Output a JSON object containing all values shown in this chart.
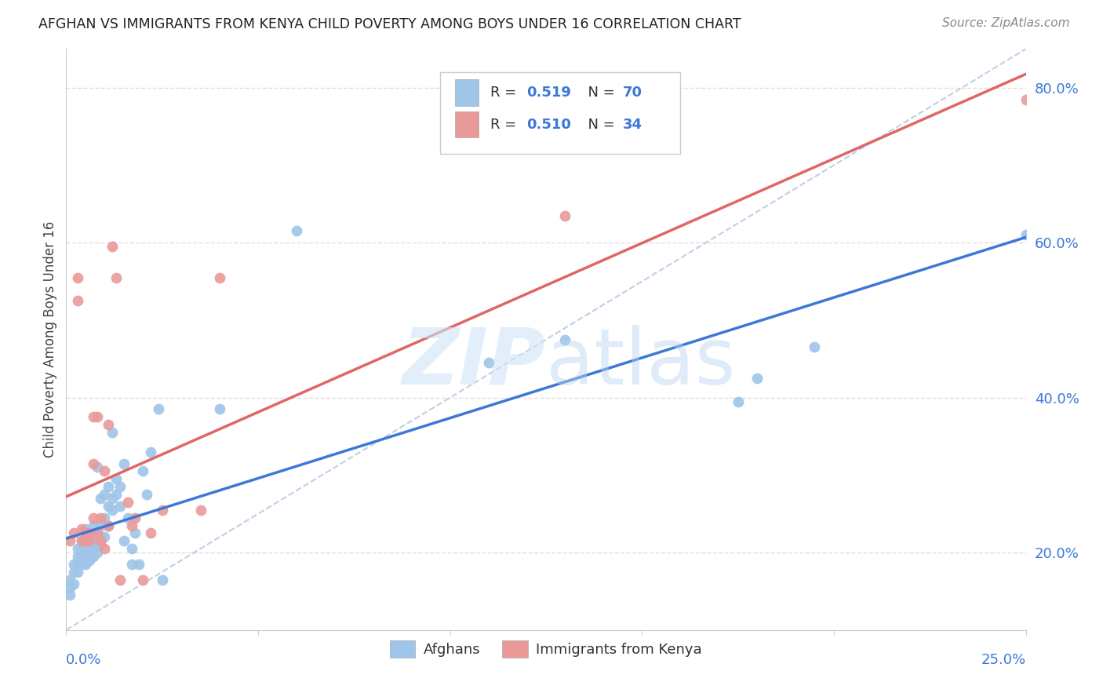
{
  "title": "AFGHAN VS IMMIGRANTS FROM KENYA CHILD POVERTY AMONG BOYS UNDER 16 CORRELATION CHART",
  "source": "Source: ZipAtlas.com",
  "ylabel": "Child Poverty Among Boys Under 16",
  "watermark": "ZIPatlas",
  "blue_color": "#9fc5e8",
  "pink_color": "#ea9999",
  "blue_line_color": "#3c78d8",
  "pink_line_color": "#e06666",
  "dashed_line_color": "#b0c4de",
  "title_color": "#222222",
  "source_color": "#888888",
  "axis_label_color": "#3c78d8",
  "legend_text_color": "#3c78d8",
  "background_color": "#ffffff",
  "grid_color": "#e0e0e0",
  "afghans_x": [
    0.001,
    0.001,
    0.001,
    0.002,
    0.002,
    0.002,
    0.003,
    0.003,
    0.003,
    0.003,
    0.004,
    0.004,
    0.004,
    0.004,
    0.005,
    0.005,
    0.005,
    0.005,
    0.005,
    0.005,
    0.006,
    0.006,
    0.006,
    0.006,
    0.007,
    0.007,
    0.007,
    0.007,
    0.007,
    0.008,
    0.008,
    0.008,
    0.008,
    0.009,
    0.009,
    0.009,
    0.009,
    0.01,
    0.01,
    0.01,
    0.011,
    0.011,
    0.011,
    0.012,
    0.012,
    0.012,
    0.013,
    0.013,
    0.014,
    0.014,
    0.015,
    0.015,
    0.016,
    0.017,
    0.017,
    0.018,
    0.019,
    0.02,
    0.021,
    0.022,
    0.024,
    0.025,
    0.04,
    0.06,
    0.11,
    0.13,
    0.175,
    0.18,
    0.195,
    0.25
  ],
  "afghans_y": [
    0.145,
    0.155,
    0.165,
    0.16,
    0.175,
    0.185,
    0.175,
    0.185,
    0.195,
    0.205,
    0.185,
    0.195,
    0.205,
    0.215,
    0.185,
    0.195,
    0.205,
    0.215,
    0.225,
    0.23,
    0.19,
    0.2,
    0.21,
    0.22,
    0.195,
    0.205,
    0.215,
    0.225,
    0.235,
    0.2,
    0.21,
    0.22,
    0.31,
    0.21,
    0.22,
    0.235,
    0.27,
    0.22,
    0.245,
    0.275,
    0.235,
    0.26,
    0.285,
    0.255,
    0.27,
    0.355,
    0.275,
    0.295,
    0.26,
    0.285,
    0.215,
    0.315,
    0.245,
    0.185,
    0.205,
    0.225,
    0.185,
    0.305,
    0.275,
    0.33,
    0.385,
    0.165,
    0.385,
    0.615,
    0.445,
    0.475,
    0.395,
    0.425,
    0.465,
    0.61
  ],
  "kenya_x": [
    0.001,
    0.002,
    0.003,
    0.003,
    0.004,
    0.004,
    0.005,
    0.005,
    0.006,
    0.006,
    0.007,
    0.007,
    0.007,
    0.008,
    0.008,
    0.009,
    0.009,
    0.01,
    0.01,
    0.011,
    0.011,
    0.012,
    0.013,
    0.014,
    0.016,
    0.017,
    0.018,
    0.02,
    0.022,
    0.025,
    0.035,
    0.04,
    0.13,
    0.25
  ],
  "kenya_y": [
    0.215,
    0.225,
    0.555,
    0.525,
    0.23,
    0.215,
    0.215,
    0.225,
    0.215,
    0.225,
    0.315,
    0.375,
    0.245,
    0.225,
    0.375,
    0.215,
    0.245,
    0.205,
    0.305,
    0.235,
    0.365,
    0.595,
    0.555,
    0.165,
    0.265,
    0.235,
    0.245,
    0.165,
    0.225,
    0.255,
    0.255,
    0.555,
    0.635,
    0.785
  ],
  "xlim": [
    0.0,
    0.25
  ],
  "ylim": [
    0.1,
    0.85
  ],
  "ytick_vals": [
    0.2,
    0.4,
    0.6,
    0.8
  ],
  "ytick_labels": [
    "20.0%",
    "40.0%",
    "60.0%",
    "80.0%"
  ]
}
